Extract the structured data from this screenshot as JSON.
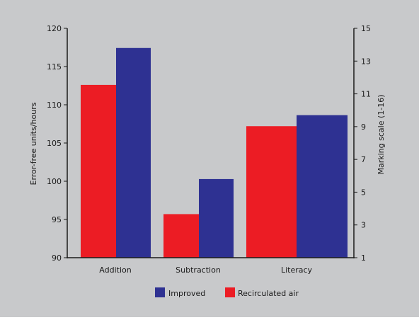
{
  "colors": {
    "background": "#c8c9cb",
    "axis": "#1a1a1a",
    "recirculated": "#ec1c24",
    "improved": "#2e3192"
  },
  "chart_data": {
    "type": "bar",
    "categories": [
      "Addition",
      "Subtraction",
      "Literacy"
    ],
    "series": [
      {
        "name": "Recirculated air",
        "axis": "left",
        "color": "#ec1c24",
        "values": [
          112.6,
          95.7,
          107.2
        ]
      },
      {
        "name": "Improved",
        "axis": "right",
        "color": "#2e3192",
        "values": [
          13.8,
          5.8,
          9.7
        ]
      }
    ],
    "ylabel": "Error-free units/hours",
    "ylim": [
      90,
      120
    ],
    "yticks": [
      "90",
      "95",
      "100",
      "105",
      "110",
      "115",
      "120"
    ],
    "y2label": "Marking scale (1-16)",
    "y2lim": [
      1,
      15
    ],
    "y2ticks": [
      "1",
      "3",
      "5",
      "7",
      "9",
      "11",
      "13",
      "15"
    ],
    "legend": {
      "position": "bottom",
      "order": [
        "Improved",
        "Recirculated air"
      ]
    },
    "grid": false
  }
}
